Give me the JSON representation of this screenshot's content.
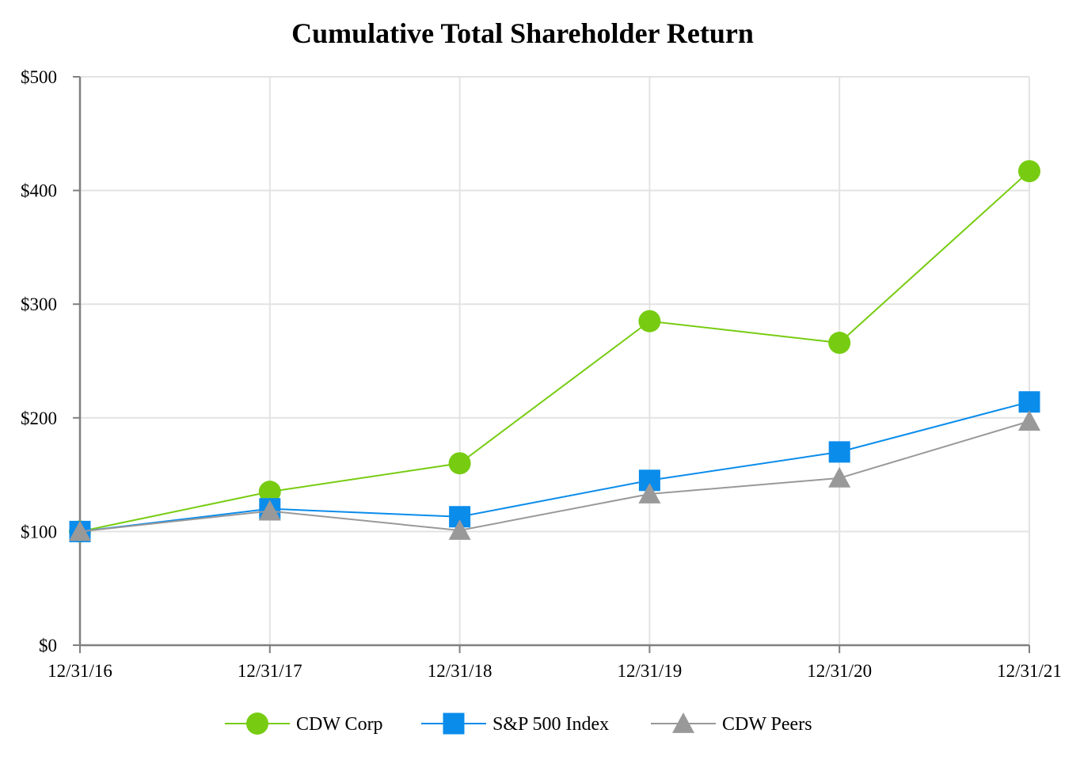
{
  "chart_data": {
    "type": "line",
    "title": "Cumulative Total Shareholder Return",
    "xlabel": "",
    "ylabel": "",
    "categories": [
      "12/31/16",
      "12/31/17",
      "12/31/18",
      "12/31/19",
      "12/31/20",
      "12/31/21"
    ],
    "ylim": [
      0,
      500
    ],
    "y_ticks": [
      0,
      100,
      200,
      300,
      400,
      500
    ],
    "y_tick_labels": [
      "$0",
      "$100",
      "$200",
      "$300",
      "$400",
      "$500"
    ],
    "grid": true,
    "legend_position": "bottom-center",
    "series": [
      {
        "name": "CDW Corp",
        "marker": "circle",
        "color": "#77CC11",
        "values": [
          100,
          135,
          160,
          285,
          266,
          417
        ]
      },
      {
        "name": "S&P 500 Index",
        "marker": "square",
        "color": "#0A8CEB",
        "values": [
          100,
          120,
          113,
          145,
          170,
          214
        ]
      },
      {
        "name": "CDW Peers",
        "marker": "triangle",
        "color": "#999999",
        "values": [
          100,
          118,
          101,
          133,
          147,
          197
        ]
      }
    ]
  }
}
